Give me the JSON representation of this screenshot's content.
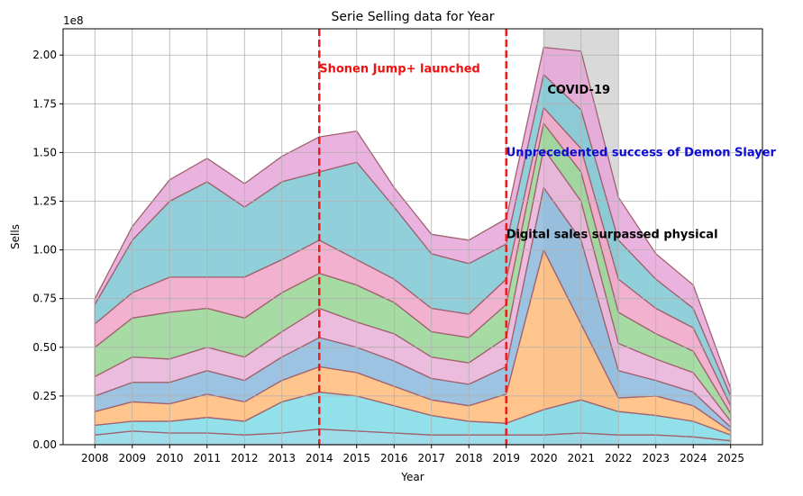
{
  "chart_data": {
    "type": "area",
    "stacked": true,
    "title": "Serie Selling data for Year",
    "xlabel": "Year",
    "ylabel": "Sells",
    "y_offset_text": "1e8",
    "grid": true,
    "x": [
      2008,
      2009,
      2010,
      2011,
      2012,
      2013,
      2014,
      2015,
      2016,
      2017,
      2018,
      2019,
      2020,
      2021,
      2022,
      2023,
      2024,
      2025
    ],
    "xlim": [
      2007.15,
      2025.85
    ],
    "ylim": [
      0,
      2.135
    ],
    "y_unit_note": "values in units of 1e8 sells",
    "yticks": [
      0.0,
      0.25,
      0.5,
      0.75,
      1.0,
      1.25,
      1.5,
      1.75,
      2.0
    ],
    "ytick_labels": [
      "0.00",
      "0.25",
      "0.50",
      "0.75",
      "1.00",
      "1.25",
      "1.50",
      "1.75",
      "2.00"
    ],
    "xtick_labels": [
      "2008",
      "2009",
      "2010",
      "2011",
      "2012",
      "2013",
      "2014",
      "2015",
      "2016",
      "2017",
      "2018",
      "2019",
      "2020",
      "2021",
      "2022",
      "2023",
      "2024",
      "2025"
    ],
    "approx_total": [
      0.75,
      1.12,
      1.36,
      1.47,
      1.34,
      1.48,
      1.58,
      1.61,
      1.32,
      1.08,
      1.05,
      1.16,
      2.04,
      2.02,
      1.27,
      0.98,
      0.82,
      0.29
    ],
    "approx_boundaries": [
      [
        0.05,
        0.07,
        0.06,
        0.06,
        0.05,
        0.06,
        0.08,
        0.07,
        0.06,
        0.05,
        0.05,
        0.05,
        0.05,
        0.06,
        0.05,
        0.05,
        0.04,
        0.02
      ],
      [
        0.1,
        0.12,
        0.12,
        0.14,
        0.12,
        0.22,
        0.27,
        0.25,
        0.2,
        0.15,
        0.12,
        0.11,
        0.18,
        0.23,
        0.17,
        0.15,
        0.12,
        0.05
      ],
      [
        0.17,
        0.22,
        0.21,
        0.26,
        0.22,
        0.33,
        0.4,
        0.37,
        0.3,
        0.23,
        0.2,
        0.26,
        1.0,
        0.62,
        0.24,
        0.25,
        0.2,
        0.07
      ],
      [
        0.25,
        0.32,
        0.32,
        0.38,
        0.33,
        0.45,
        0.55,
        0.5,
        0.43,
        0.34,
        0.31,
        0.4,
        1.32,
        1.05,
        0.38,
        0.33,
        0.27,
        0.09
      ],
      [
        0.35,
        0.45,
        0.44,
        0.5,
        0.45,
        0.58,
        0.7,
        0.63,
        0.57,
        0.45,
        0.42,
        0.55,
        1.52,
        1.25,
        0.52,
        0.44,
        0.37,
        0.12
      ],
      [
        0.5,
        0.65,
        0.68,
        0.7,
        0.65,
        0.78,
        0.88,
        0.82,
        0.73,
        0.58,
        0.55,
        0.72,
        1.65,
        1.4,
        0.68,
        0.57,
        0.48,
        0.16
      ],
      [
        0.62,
        0.78,
        0.86,
        0.86,
        0.86,
        0.95,
        1.05,
        0.95,
        0.85,
        0.7,
        0.67,
        0.85,
        1.73,
        1.52,
        0.85,
        0.7,
        0.6,
        0.2
      ],
      [
        0.72,
        1.05,
        1.25,
        1.35,
        1.22,
        1.35,
        1.4,
        1.45,
        1.22,
        0.98,
        0.93,
        1.03,
        1.9,
        1.72,
        1.05,
        0.85,
        0.7,
        0.25
      ],
      [
        0.75,
        1.12,
        1.36,
        1.47,
        1.34,
        1.48,
        1.58,
        1.61,
        1.32,
        1.08,
        1.05,
        1.16,
        2.04,
        2.02,
        1.27,
        0.98,
        0.82,
        0.29
      ]
    ],
    "series_colors": [
      "#8fd7e8",
      "#7fdbe6",
      "#ffbb78",
      "#8bb8dc",
      "#e8b0d8",
      "#98d594",
      "#eea3c7",
      "#7ec8d4",
      "#e6a6d9"
    ],
    "vlines": [
      {
        "x": 2014,
        "color": "#ee1c1c",
        "style": "dashed"
      },
      {
        "x": 2019,
        "color": "#ee1c1c",
        "style": "dashed"
      }
    ],
    "shaded_span": {
      "x_start": 2020,
      "x_end": 2022,
      "color": "#b3b3b3"
    },
    "annotations": [
      {
        "text": "Shonen Jump+ launched",
        "x": 2014,
        "y": 1.93,
        "color": "#ee1111"
      },
      {
        "text": "COVID-19",
        "x": 2020.1,
        "y": 1.82,
        "color": "#000000"
      },
      {
        "text": "Unprecedented success of Demon Slayer",
        "x": 2019,
        "y": 1.5,
        "color": "#0a0ad0"
      },
      {
        "text": "Digital sales surpassed physical",
        "x": 2019,
        "y": 1.08,
        "color": "#000000"
      }
    ]
  }
}
